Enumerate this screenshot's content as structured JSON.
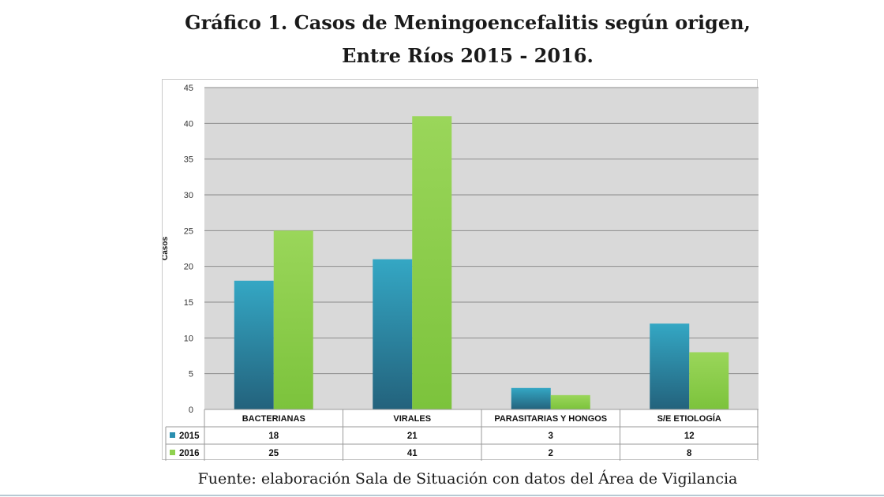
{
  "title_line1": "Gráfico 1. Casos de Meningoencefalitis según origen,",
  "title_line2": "Entre Ríos 2015 - 2016.",
  "source": "Fuente: elaboración Sala de Situación con datos del Área de Vigilancia",
  "chart_data": {
    "type": "bar",
    "title": "Gráfico 1. Casos de Meningoencefalitis según origen, Entre Ríos 2015 - 2016.",
    "xlabel": "",
    "ylabel": "Casos",
    "ylim": [
      0,
      45
    ],
    "yticks": [
      0,
      5,
      10,
      15,
      20,
      25,
      30,
      35,
      40,
      45
    ],
    "grid": true,
    "legend": "data-table",
    "categories": [
      "BACTERIANAS",
      "VIRALES",
      "PARASITARIAS Y HONGOS",
      "S/E ETIOLOGÍA"
    ],
    "series": [
      {
        "name": "2015",
        "values": [
          18,
          21,
          3,
          12
        ],
        "color": "#2e9bb9"
      },
      {
        "name": "2016",
        "values": [
          25,
          41,
          2,
          8
        ],
        "color": "#8fd14f"
      }
    ]
  }
}
